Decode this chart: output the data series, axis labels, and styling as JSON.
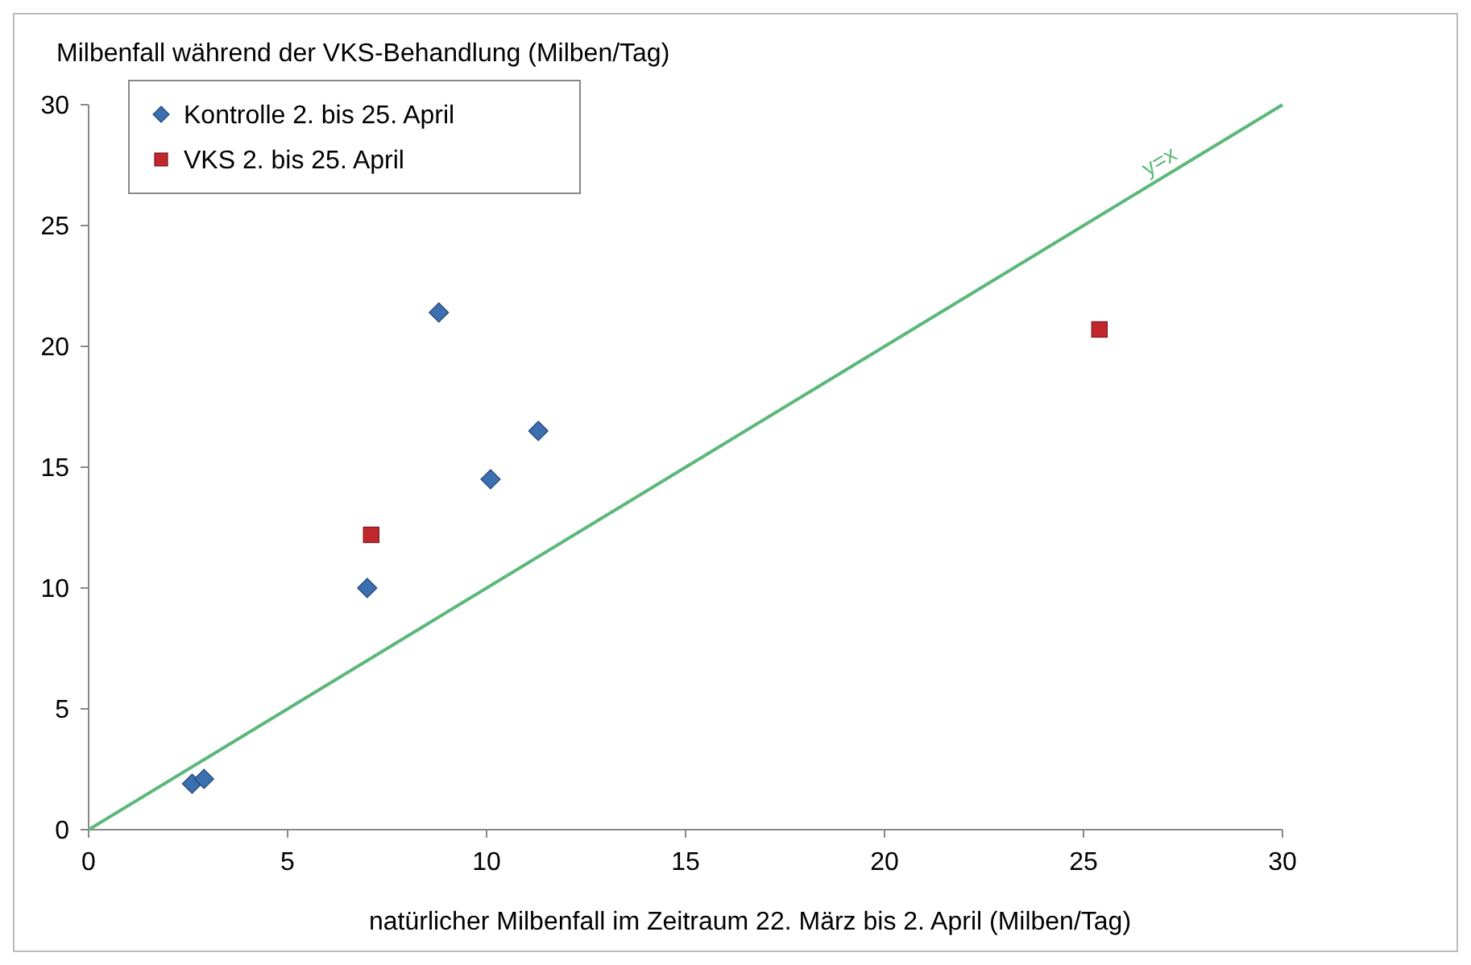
{
  "chart_data": {
    "type": "scatter",
    "ylabel": "Milbenfall während der VKS-Behandlung (Milben/Tag)",
    "xlabel": "natürlicher Milbenfall im Zeitraum 22. März bis 2. April (Milben/Tag)",
    "xlim": [
      0,
      30
    ],
    "xticks": [
      0,
      5,
      10,
      15,
      20,
      25,
      30
    ],
    "ylim": [
      0,
      30
    ],
    "yticks": [
      0,
      5,
      10,
      15,
      20,
      25,
      30
    ],
    "grid": false,
    "legend": "top left",
    "series": [
      {
        "name": "Kontrolle 2. bis 25. April",
        "color": "#3b6fb0",
        "marker": "diamond",
        "x": [
          2.6,
          2.9,
          7.0,
          8.8,
          10.1,
          11.3
        ],
        "values": [
          1.9,
          2.1,
          10.0,
          21.4,
          14.5,
          16.5
        ]
      },
      {
        "name": "VKS 2. bis 25. April",
        "color": "#c0282d",
        "marker": "square",
        "x": [
          7.1,
          25.4
        ],
        "values": [
          12.2,
          20.7
        ]
      },
      {
        "name": "y=x",
        "type": "line",
        "color": "#5cb87a",
        "x": [
          0,
          30
        ],
        "values": [
          0,
          30
        ]
      }
    ]
  }
}
